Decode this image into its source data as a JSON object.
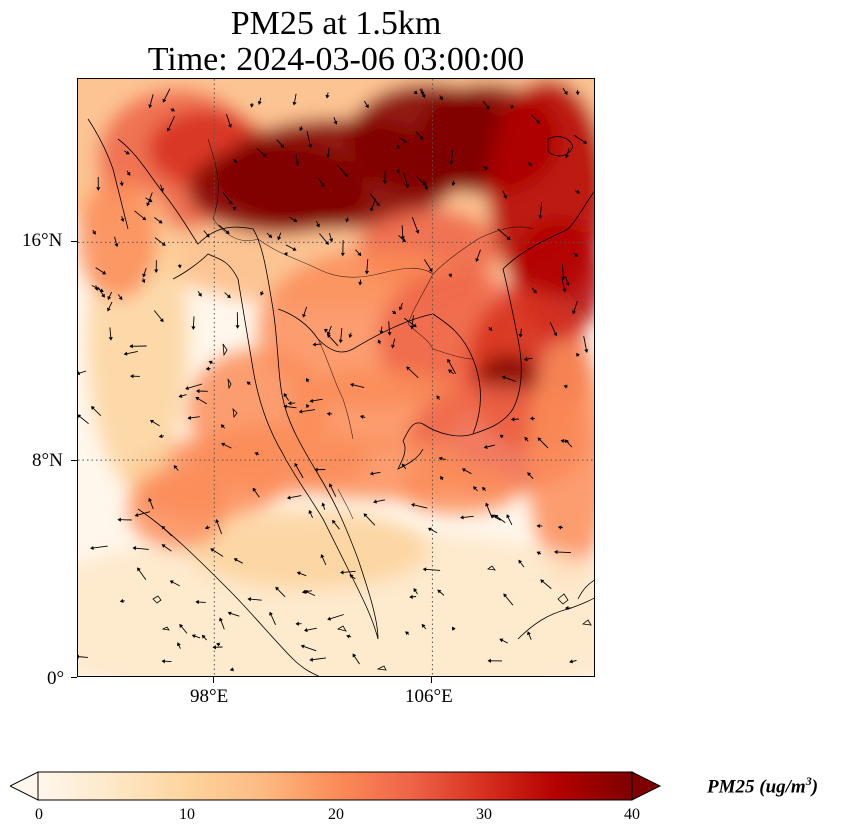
{
  "title": {
    "line1": "PM25 at 1.5km",
    "line2": "Time: 2024-03-06 03:00:00"
  },
  "map": {
    "variable": "PM25",
    "level": "1.5km",
    "time": "2024-03-06 03:00:00",
    "lon_range": [
      93,
      112
    ],
    "lat_range": [
      0,
      22
    ],
    "gridlines": {
      "lons": [
        98,
        106
      ],
      "lats": [
        8,
        16
      ],
      "style": "dotted"
    },
    "lon_ticks": [
      "98°E",
      "106°E"
    ],
    "lat_ticks": [
      "0°",
      "8°N",
      "16°N"
    ],
    "features": [
      "coastlines",
      "country-borders",
      "wind-vectors"
    ]
  },
  "colorbar": {
    "label": "PM25 (ug/m",
    "label_sup": "3",
    "label_close": ")",
    "ticks": [
      "0",
      "10",
      "20",
      "30",
      "40"
    ],
    "min": 0,
    "max": 40,
    "extend": "both",
    "colormap": "OrRd",
    "colors": [
      "#fff7ec",
      "#fee8c8",
      "#fdd49e",
      "#fdbb84",
      "#fc8d59",
      "#ef6548",
      "#d7301f",
      "#b30000",
      "#7f0000"
    ]
  }
}
